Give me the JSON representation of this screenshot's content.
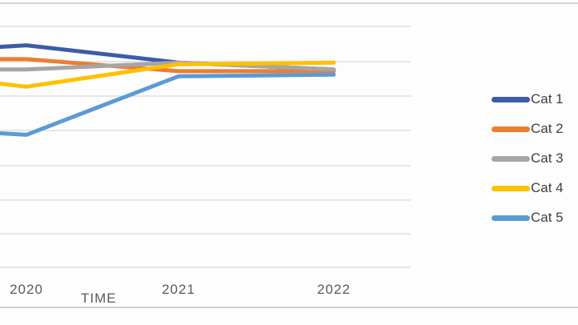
{
  "page": {
    "background": "#FDFDFD",
    "top_border_color": "#D8D5D8",
    "bottom_border_color": "#D2CFD4"
  },
  "axis": {
    "tick_text_color": "#595959",
    "title_text_color": "#595959"
  },
  "legend": {
    "text_color": "#404040"
  },
  "chart_data": {
    "type": "line",
    "title": "",
    "x_axis_title": "TIME",
    "x_categories": [
      "2020",
      "2021",
      "2022"
    ],
    "y_axis_note": "y-axis labels cropped out of frame; values given in visible-gridline units (lowest visible gridline = 0, one gridline interval = 1, 8 gridlines visible)",
    "ylim": [
      0,
      7
    ],
    "grid": "horizontal gridlines on, color #D9D9D9",
    "legend_position": "right",
    "gridline_color": "#D9D9D9",
    "series": [
      {
        "name": "Cat 1",
        "color": "#3C5BA8",
        "edge_value": 6.4,
        "values": [
          6.45,
          5.95,
          5.75
        ]
      },
      {
        "name": "Cat 2",
        "color": "#ED7D31",
        "edge_value": 6.05,
        "values": [
          6.05,
          5.7,
          5.7
        ]
      },
      {
        "name": "Cat 3",
        "color": "#A6A6A6",
        "edge_value": 5.75,
        "values": [
          5.75,
          5.95,
          5.75
        ]
      },
      {
        "name": "Cat 4",
        "color": "#FFC000",
        "edge_value": 5.35,
        "values": [
          5.25,
          5.9,
          5.95
        ]
      },
      {
        "name": "Cat 5",
        "color": "#5B9BD5",
        "edge_value": 3.9,
        "values": [
          3.85,
          5.55,
          5.6
        ]
      }
    ],
    "series_note": "lines continue off the cropped left edge of the image; edge_value is the value where each line meets x=left edge"
  }
}
